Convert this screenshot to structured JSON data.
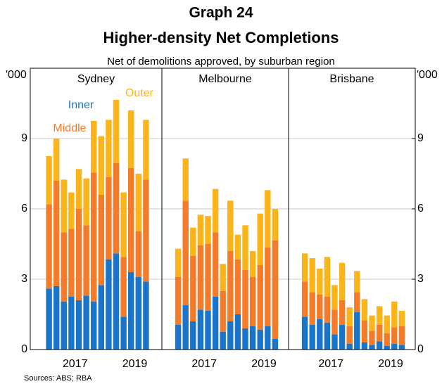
{
  "header": "Graph 24",
  "title": "Higher-density Net Completions",
  "subtitle": "Net of demolitions approved, by suburban region",
  "sources": "Sources:   ABS; RBA",
  "chart_data": [
    {
      "type": "bar",
      "stacked": true,
      "panel_title": "Sydney",
      "y_label": "'000",
      "categories": [
        null,
        null,
        null,
        null,
        "2017",
        null,
        null,
        null,
        null,
        null,
        null,
        null,
        "2019",
        null
      ],
      "ylim": [
        0,
        12
      ],
      "yticks": [
        0,
        3,
        6,
        9
      ],
      "grid": true,
      "series": [
        {
          "name": "Inner",
          "color": "#1a74c9",
          "values": [
            2.6,
            2.7,
            2.05,
            2.25,
            2.1,
            2.3,
            2.05,
            2.75,
            3.85,
            4.1,
            1.4,
            3.3,
            3.1,
            2.9
          ]
        },
        {
          "name": "Middle",
          "color": "#f47b2a",
          "values": [
            3.6,
            4.5,
            2.95,
            2.9,
            3.9,
            3.0,
            5.5,
            3.85,
            3.5,
            3.85,
            2.55,
            4.45,
            1.95,
            4.35
          ]
        },
        {
          "name": "Outer",
          "color": "#fbb41a",
          "values": [
            2.05,
            1.8,
            2.25,
            1.55,
            1.7,
            2.0,
            2.2,
            2.5,
            2.45,
            2.7,
            2.75,
            2.45,
            2.45,
            2.55
          ]
        }
      ]
    },
    {
      "type": "bar",
      "stacked": true,
      "panel_title": "Melbourne",
      "categories": [
        null,
        null,
        null,
        null,
        "2017",
        null,
        null,
        null,
        null,
        null,
        null,
        null,
        "2019",
        null
      ],
      "ylim": [
        0,
        12
      ],
      "grid": true,
      "series": [
        {
          "color": "#1a74c9",
          "values": [
            1.05,
            1.9,
            1.2,
            1.7,
            1.65,
            2.25,
            0.75,
            1.2,
            1.5,
            0.9,
            1.0,
            0.85,
            1.0,
            0.45
          ]
        },
        {
          "color": "#f47b2a",
          "values": [
            2.05,
            4.45,
            2.8,
            2.75,
            2.85,
            2.75,
            1.75,
            3.0,
            2.35,
            2.5,
            2.1,
            2.75,
            3.35,
            4.2
          ]
        },
        {
          "color": "#fbb41a",
          "values": [
            1.2,
            1.8,
            1.2,
            1.3,
            1.2,
            1.85,
            1.15,
            2.15,
            1.05,
            1.9,
            1.1,
            2.2,
            2.45,
            1.35
          ]
        }
      ]
    },
    {
      "type": "bar",
      "stacked": true,
      "panel_title": "Brisbane",
      "y2_label": "'000",
      "categories": [
        null,
        null,
        null,
        null,
        "2017",
        null,
        null,
        null,
        null,
        null,
        null,
        null,
        "2019",
        null
      ],
      "ylim": [
        0,
        12
      ],
      "y2lim": [
        0,
        12
      ],
      "y2ticks": [
        0,
        3,
        6,
        9
      ],
      "grid": true,
      "series": [
        {
          "color": "#1a74c9",
          "values": [
            1.4,
            1.05,
            1.3,
            1.15,
            0.65,
            1.05,
            0.25,
            1.6,
            0.3,
            0.2,
            0.35,
            0.15,
            0.25,
            0.2
          ]
        },
        {
          "color": "#f47b2a",
          "values": [
            1.5,
            1.4,
            1.05,
            1.1,
            1.05,
            1.05,
            0.75,
            0.85,
            0.95,
            0.6,
            0.7,
            0.55,
            0.7,
            0.8
          ]
        },
        {
          "color": "#fbb41a",
          "values": [
            1.2,
            1.45,
            1.1,
            1.7,
            1.05,
            1.6,
            0.8,
            0.9,
            0.9,
            0.65,
            0.8,
            0.75,
            1.1,
            0.65
          ]
        }
      ]
    }
  ]
}
